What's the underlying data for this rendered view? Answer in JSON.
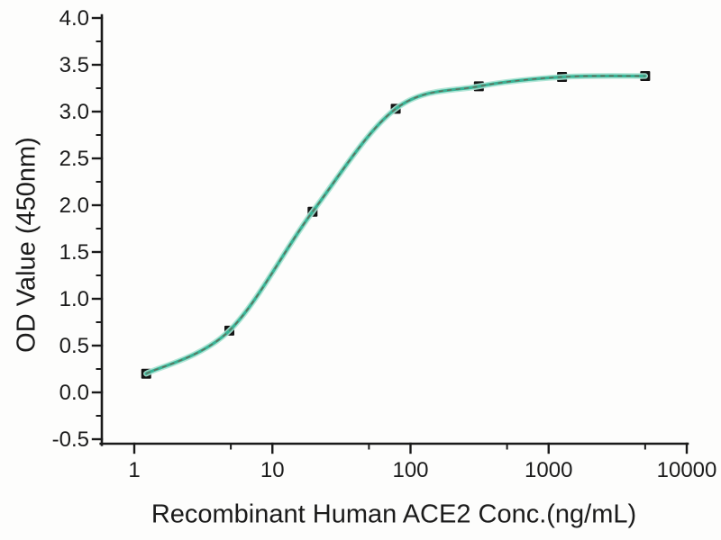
{
  "figure": {
    "background": "#fdfdfc"
  },
  "chart_data": {
    "type": "scatter",
    "title": "",
    "xlabel": "Recombinant Human ACE2 Conc.(ng/mL)",
    "ylabel": "OD Value (450nm)",
    "x_scale": "log10",
    "xlim": [
      0.58,
      10000
    ],
    "ylim": [
      -0.55,
      4.05
    ],
    "grid": false,
    "legend": "none",
    "x_major_ticks": [
      1,
      10,
      100,
      1000,
      10000
    ],
    "x_major_tick_labels": [
      "1",
      "10",
      "100",
      "1000",
      "10000"
    ],
    "x_minor_ticks": [
      5,
      50,
      500,
      5000
    ],
    "y_major_ticks": [
      -0.5,
      0.0,
      0.5,
      1.0,
      1.5,
      2.0,
      2.5,
      3.0,
      3.5,
      4.0
    ],
    "y_major_tick_labels": [
      "-0.5",
      "0.0",
      "0.5",
      "1.0",
      "1.5",
      "2.0",
      "2.5",
      "3.0",
      "3.5",
      "4.0"
    ],
    "y_minor_ticks": [
      -0.25,
      0.25,
      0.75,
      1.25,
      1.75,
      2.25,
      2.75,
      3.25,
      3.75
    ],
    "series": [
      {
        "name": "ACE2 binding data points",
        "role": "measured-points",
        "marker": "black-square",
        "x": [
          1.22,
          4.88,
          19.53,
          78.13,
          312.5,
          1250,
          5000
        ],
        "y": [
          0.2,
          0.66,
          1.93,
          3.03,
          3.27,
          3.37,
          3.38
        ]
      },
      {
        "name": "4PL sigmoidal fit curve",
        "role": "fit-curve",
        "style": "smooth solid teal with dark dashed overlay",
        "x": [
          1.22,
          4.88,
          19.53,
          78.13,
          312.5,
          1250,
          5000
        ],
        "y": [
          0.2,
          0.66,
          1.93,
          3.03,
          3.27,
          3.37,
          3.38
        ]
      }
    ],
    "colors": {
      "curve": "#38b496",
      "curve_halo": "#a9e2d2",
      "curve_dash": "#6e5c4e",
      "marker": "#141414",
      "axis": "#1a1a1a",
      "text": "#1b1b1b"
    }
  }
}
